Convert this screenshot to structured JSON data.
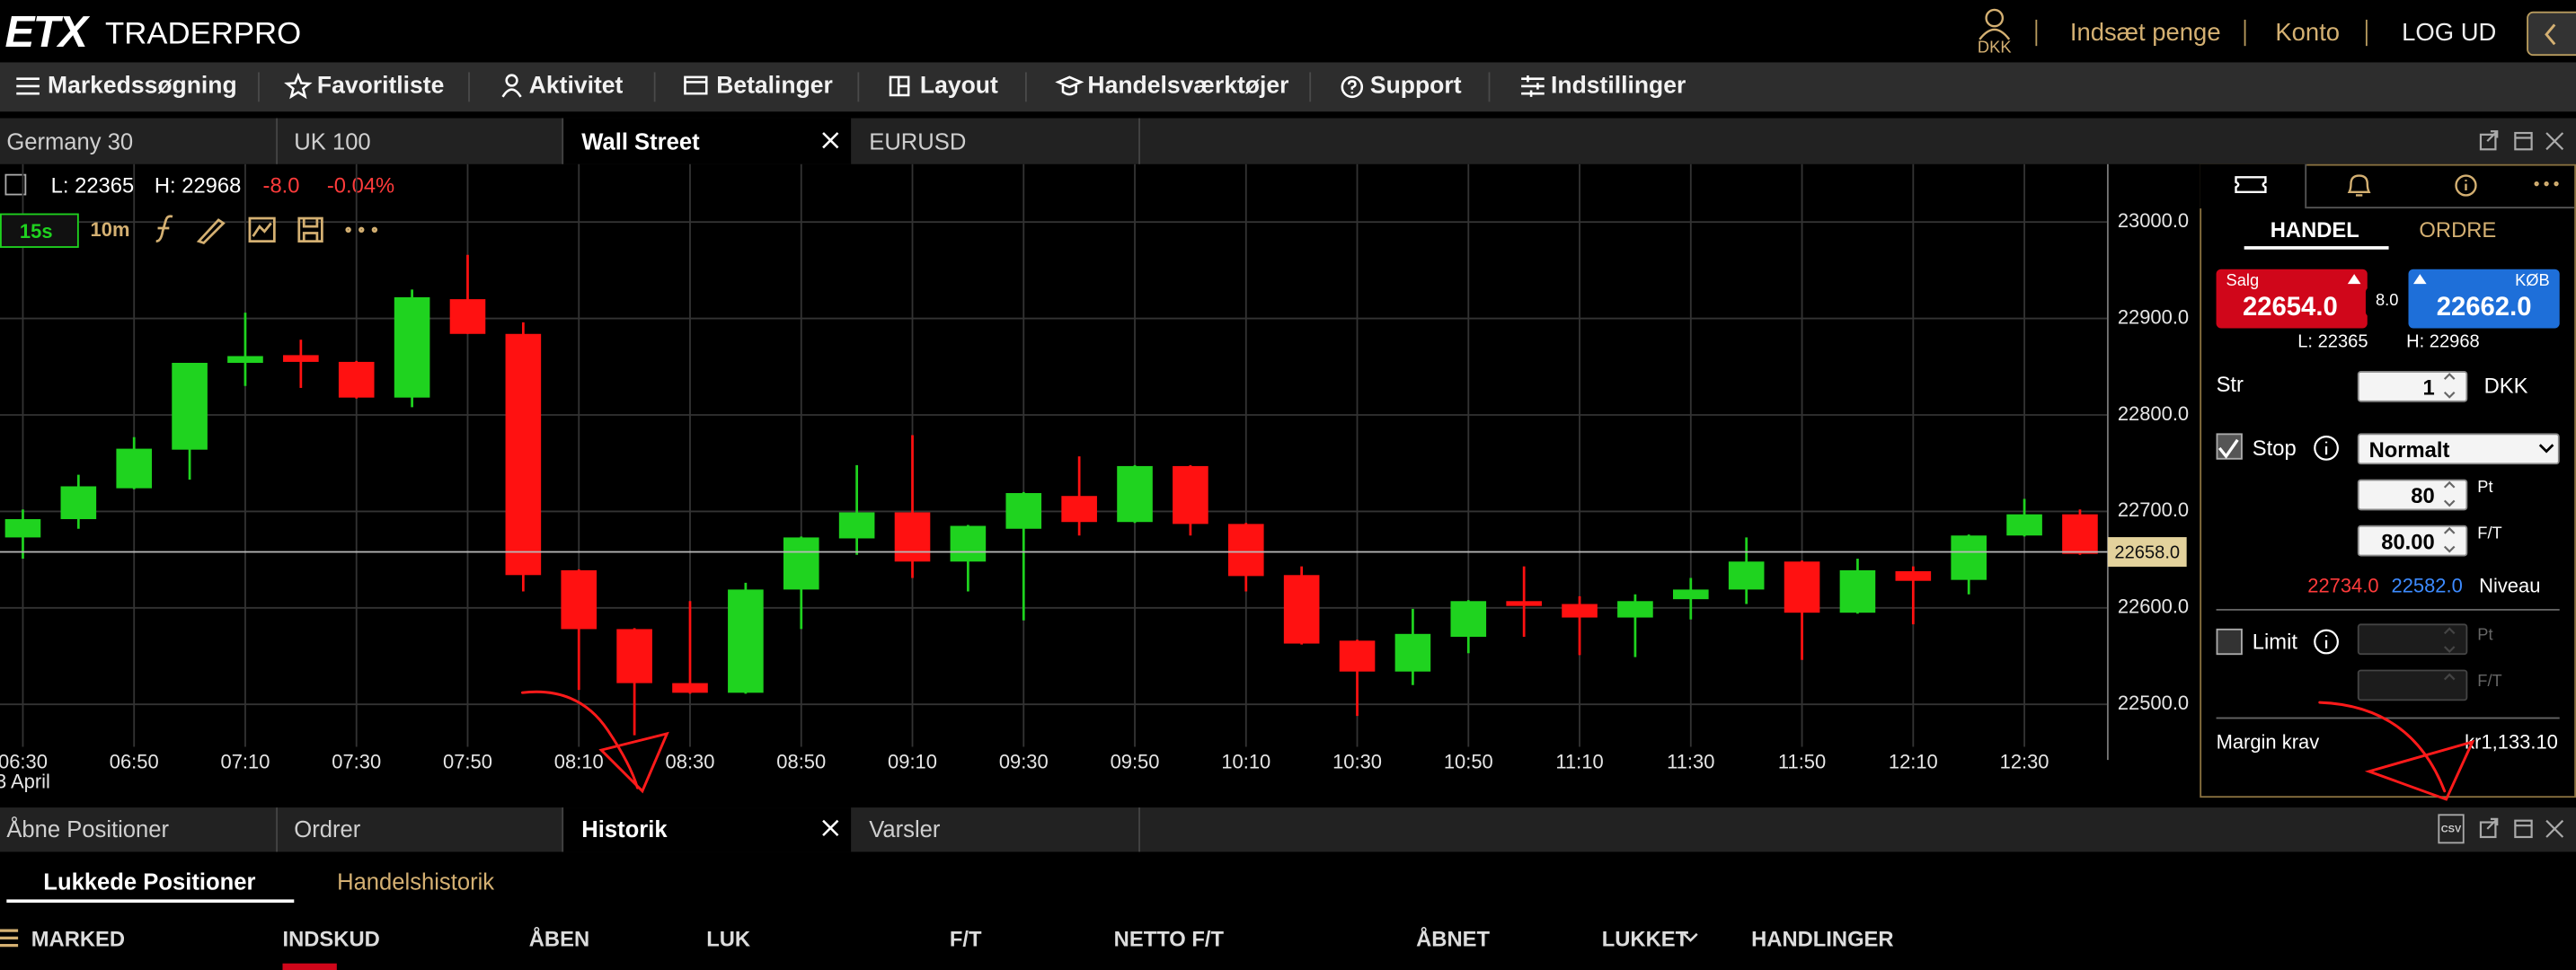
{
  "header": {
    "logo": "ETX",
    "brand": "TRADERPRO",
    "currency": "DKK",
    "deposit": "Indsæt penge",
    "account": "Konto",
    "logout": "LOG UD"
  },
  "menu": [
    "Markedssøgning",
    "Favoritliste",
    "Aktivitet",
    "Betalinger",
    "Layout",
    "Handelsværktøjer",
    "Support",
    "Indstillinger"
  ],
  "chart_tabs": [
    "Germany 30",
    "UK 100",
    "Wall Street",
    "EURUSD"
  ],
  "quote": {
    "low": "L: 22365",
    "high": "H: 22968",
    "change": "-8.0",
    "change_pct": "-0.04%"
  },
  "toolbar": {
    "interval": "15s",
    "period": "10m"
  },
  "chart": {
    "type": "candlestick",
    "date_label": "3 April",
    "categories": [
      "06:30",
      null,
      "06:50",
      null,
      "07:10",
      null,
      "07:30",
      null,
      "07:50",
      null,
      "08:10",
      null,
      "08:30",
      null,
      "08:50",
      null,
      "09:10",
      null,
      "09:30",
      null,
      "09:50",
      null,
      "10:10",
      null,
      "10:30",
      null,
      "10:50",
      null,
      "11:10",
      null,
      "11:30",
      null,
      "11:50",
      null,
      "12:10",
      null,
      "12:30",
      null
    ],
    "open": [
      22673,
      22692,
      22724,
      22764,
      22854,
      22862,
      22855,
      22818,
      22920,
      22884,
      22639,
      22578,
      22522,
      22512,
      22619,
      22672,
      22699,
      22648,
      22682,
      22716,
      22689,
      22747,
      22687,
      22634,
      22566,
      22534,
      22570,
      22607,
      22604,
      22590,
      22609,
      22619,
      22648,
      22595,
      22638,
      22629,
      22675,
      22697
    ],
    "high": [
      22702,
      22738,
      22777,
      22854,
      22906,
      22878,
      22856,
      22930,
      22966,
      22896,
      22640,
      22579,
      22607,
      22626,
      22674,
      22748,
      22779,
      22686,
      22720,
      22757,
      22748,
      22748,
      22688,
      22643,
      22567,
      22599,
      22608,
      22643,
      22612,
      22614,
      22631,
      22673,
      22649,
      22651,
      22643,
      22676,
      22713,
      22702
    ],
    "low": [
      22651,
      22682,
      22723,
      22733,
      22830,
      22828,
      22817,
      22808,
      22884,
      22617,
      22515,
      22468,
      22511,
      22511,
      22578,
      22655,
      22631,
      22617,
      22587,
      22675,
      22688,
      22675,
      22617,
      22562,
      22488,
      22520,
      22553,
      22570,
      22551,
      22549,
      22588,
      22604,
      22546,
      22594,
      22583,
      22614,
      22674,
      22655
    ],
    "close": [
      22692,
      22726,
      22765,
      22854,
      22861,
      22855,
      22818,
      22922,
      22884,
      22634,
      22578,
      22522,
      22512,
      22619,
      22673,
      22699,
      22648,
      22685,
      22719,
      22689,
      22747,
      22687,
      22633,
      22563,
      22534,
      22573,
      22607,
      22602,
      22590,
      22607,
      22619,
      22648,
      22595,
      22639,
      22628,
      22675,
      22697,
      22656
    ],
    "up_color": "#1fd31f",
    "down_color": "#ff1111",
    "ylim": [
      22456,
      23060
    ],
    "yticks": [
      {
        "value": 22500,
        "label": "22500.0"
      },
      {
        "value": 22600,
        "label": "22600.0"
      },
      {
        "value": 22700,
        "label": "22700.0"
      },
      {
        "value": 22800,
        "label": "22800.0"
      },
      {
        "value": 22900,
        "label": "22900.0"
      },
      {
        "value": 23000,
        "label": "23000.0"
      }
    ],
    "current_price": {
      "value": 22658,
      "label": "22658.0"
    },
    "grid": true
  },
  "trade_panel": {
    "tabs": [
      "HANDEL",
      "ORDRE"
    ],
    "sell_label": "Salg",
    "sell_price": "22654.0",
    "spread": "8.0",
    "buy_label": "KØB",
    "buy_price": "22662.0",
    "low": "L: 22365",
    "high": "H: 22968",
    "size_label": "Str",
    "size": "1",
    "currency": "DKK",
    "stop_label": "Stop",
    "stop_type": "Normalt",
    "stop_points": "80",
    "points_unit": "Pt",
    "stop_pl": "80.00",
    "pl_unit": "F/T",
    "stop_level_sell": "22734.0",
    "stop_level_buy": "22582.0",
    "level_label": "Niveau",
    "limit_label": "Limit",
    "limit_points_unit": "Pt",
    "limit_pl_unit": "F/T",
    "margin_label": "Margin krav",
    "margin": "kr1,133.10"
  },
  "bottom_tabs": [
    "Åbne Positioner",
    "Ordrer",
    "Historik",
    "Varsler"
  ],
  "csv": "CSV",
  "history_tabs": [
    "Lukkede Positioner",
    "Handelshistorik"
  ],
  "columns": [
    "MARKED",
    "INDSKUD",
    "ÅBEN",
    "LUK",
    "F/T",
    "NETTO F/T",
    "ÅBNET",
    "LUKKET",
    "HANDLINGER"
  ]
}
